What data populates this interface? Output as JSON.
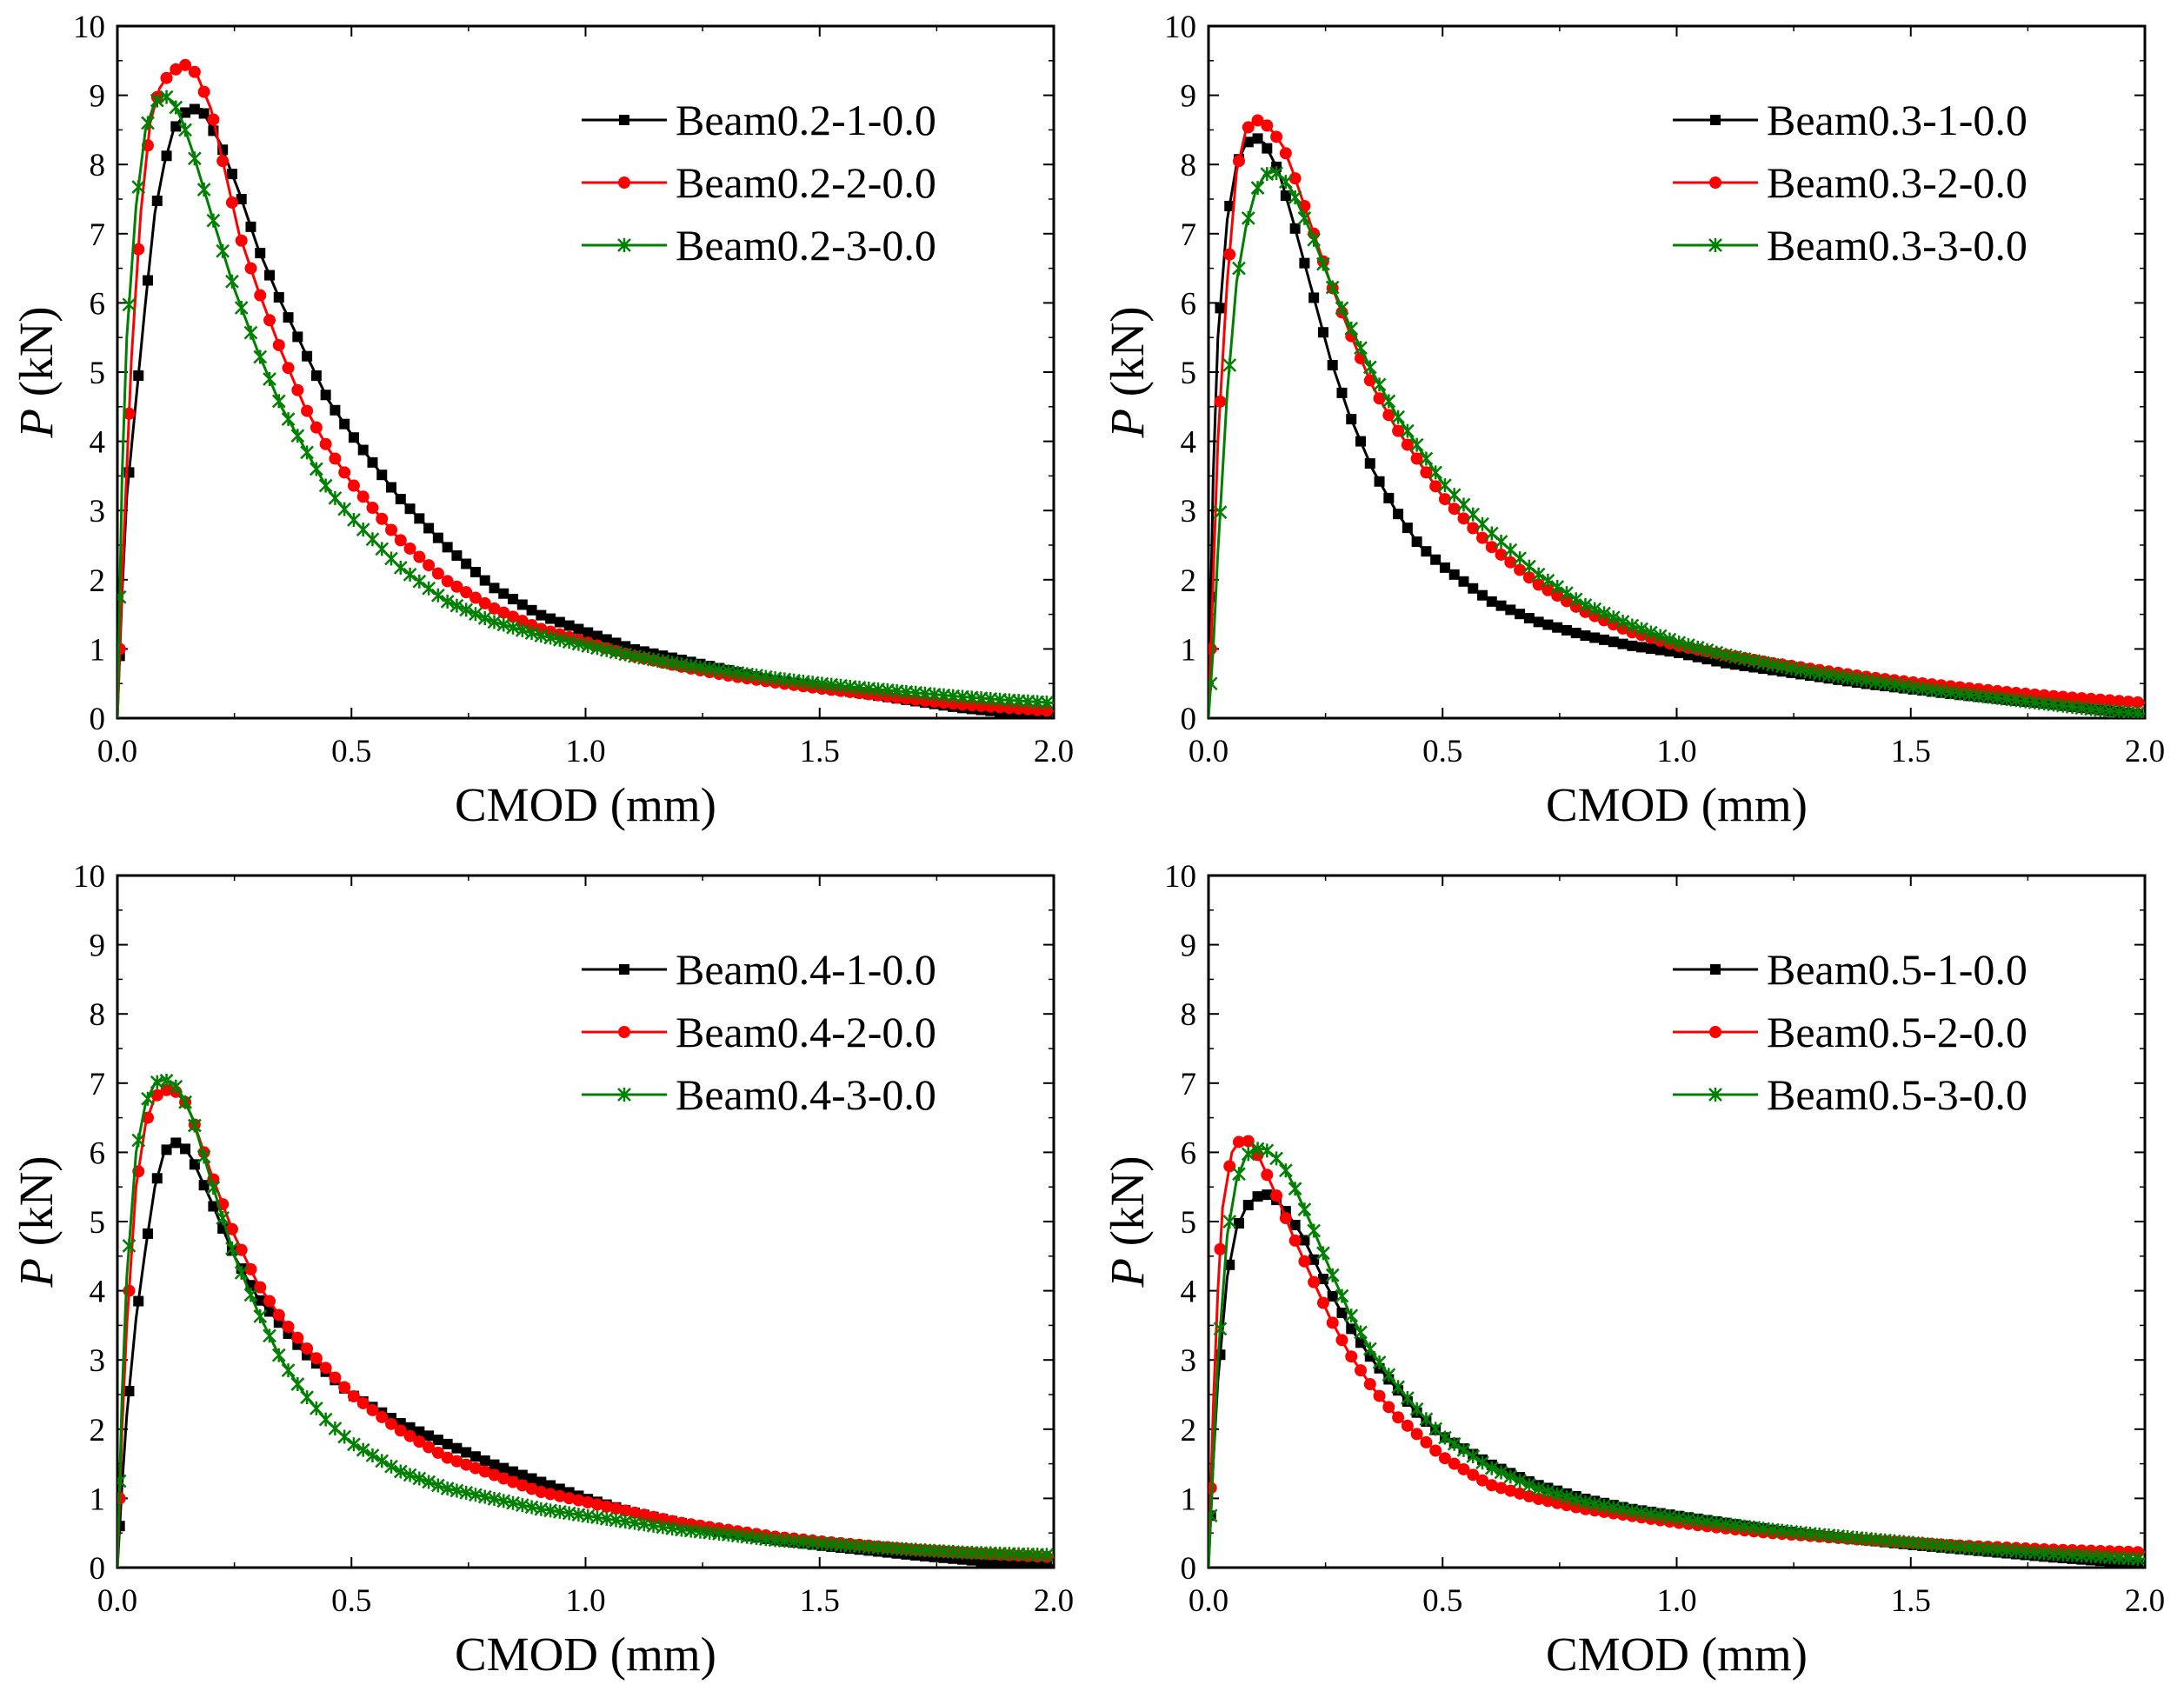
{
  "chart_data": [
    {
      "type": "line",
      "xlabel": "CMOD (mm)",
      "ylabel_var": "P",
      "ylabel_unit": " (kN)",
      "xlim": [
        0.0,
        2.0
      ],
      "ylim": [
        0,
        10
      ],
      "xticks": [
        "0.0",
        "0.5",
        "1.0",
        "1.5",
        "2.0"
      ],
      "yticks": [
        "0",
        "1",
        "2",
        "3",
        "4",
        "5",
        "6",
        "7",
        "8",
        "9",
        "10"
      ],
      "legend_position": "top-right",
      "series": [
        {
          "name": "Beam0.2-1-0.0",
          "color": "#000000",
          "marker": "square",
          "x": [
            0,
            0.01,
            0.02,
            0.04,
            0.06,
            0.08,
            0.1,
            0.12,
            0.15,
            0.18,
            0.22,
            0.26,
            0.3,
            0.35,
            0.4,
            0.45,
            0.5,
            0.6,
            0.7,
            0.8,
            0.9,
            1.0,
            1.1,
            1.2,
            1.3,
            1.4,
            1.5,
            1.6,
            1.7,
            1.8,
            1.9,
            2.0
          ],
          "y": [
            0,
            1.8,
            3.2,
            4.6,
            6.0,
            7.3,
            8.0,
            8.5,
            8.8,
            8.8,
            8.3,
            7.6,
            6.8,
            6.0,
            5.3,
            4.6,
            4.1,
            3.2,
            2.5,
            1.9,
            1.5,
            1.25,
            1.0,
            0.85,
            0.7,
            0.55,
            0.45,
            0.35,
            0.25,
            0.15,
            0.08,
            0.05
          ]
        },
        {
          "name": "Beam0.2-2-0.0",
          "color": "#ff0000",
          "marker": "circle",
          "x": [
            0,
            0.01,
            0.02,
            0.03,
            0.05,
            0.07,
            0.09,
            0.11,
            0.13,
            0.15,
            0.17,
            0.2,
            0.23,
            0.26,
            0.3,
            0.35,
            0.4,
            0.45,
            0.5,
            0.6,
            0.7,
            0.8,
            0.9,
            1.0,
            1.1,
            1.2,
            1.3,
            1.4,
            1.5,
            1.6,
            1.7,
            1.8,
            1.9,
            2.0
          ],
          "y": [
            0,
            2.0,
            3.6,
            5.2,
            7.3,
            8.6,
            9.1,
            9.3,
            9.4,
            9.45,
            9.3,
            8.8,
            7.9,
            7.0,
            6.2,
            5.3,
            4.5,
            3.9,
            3.4,
            2.6,
            2.0,
            1.6,
            1.3,
            1.1,
            0.9,
            0.75,
            0.62,
            0.52,
            0.43,
            0.35,
            0.27,
            0.2,
            0.15,
            0.1
          ]
        },
        {
          "name": "Beam0.2-3-0.0",
          "color": "#008000",
          "marker": "asterisk",
          "x": [
            0,
            0.01,
            0.02,
            0.04,
            0.06,
            0.08,
            0.1,
            0.12,
            0.14,
            0.16,
            0.2,
            0.25,
            0.3,
            0.35,
            0.4,
            0.45,
            0.5,
            0.6,
            0.7,
            0.8,
            0.9,
            1.0,
            1.1,
            1.2,
            1.3,
            1.4,
            1.5,
            1.6,
            1.7,
            1.8,
            1.9,
            2.0
          ],
          "y": [
            0,
            3.5,
            5.5,
            7.4,
            8.5,
            8.9,
            9.0,
            8.9,
            8.6,
            8.2,
            7.3,
            6.2,
            5.3,
            4.5,
            3.9,
            3.3,
            2.9,
            2.2,
            1.7,
            1.4,
            1.2,
            1.05,
            0.9,
            0.78,
            0.68,
            0.58,
            0.5,
            0.43,
            0.37,
            0.31,
            0.26,
            0.22
          ]
        }
      ]
    },
    {
      "type": "line",
      "xlabel": "CMOD (mm)",
      "ylabel_var": "P",
      "ylabel_unit": " (kN)",
      "xlim": [
        0.0,
        2.0
      ],
      "ylim": [
        0,
        10
      ],
      "xticks": [
        "0.0",
        "0.5",
        "1.0",
        "1.5",
        "2.0"
      ],
      "yticks": [
        "0",
        "1",
        "2",
        "3",
        "4",
        "5",
        "6",
        "7",
        "8",
        "9",
        "10"
      ],
      "legend_position": "top-right",
      "series": [
        {
          "name": "Beam0.3-1-0.0",
          "color": "#000000",
          "marker": "square",
          "x": [
            0,
            0.01,
            0.02,
            0.04,
            0.06,
            0.08,
            0.1,
            0.12,
            0.15,
            0.18,
            0.22,
            0.26,
            0.3,
            0.35,
            0.4,
            0.45,
            0.5,
            0.6,
            0.7,
            0.8,
            0.9,
            1.0,
            1.1,
            1.2,
            1.3,
            1.4,
            1.5,
            1.6,
            1.7,
            1.8,
            1.9,
            2.0
          ],
          "y": [
            0,
            3.5,
            5.5,
            7.2,
            8.0,
            8.3,
            8.4,
            8.3,
            7.9,
            7.2,
            6.2,
            5.2,
            4.4,
            3.6,
            3.0,
            2.5,
            2.2,
            1.7,
            1.4,
            1.2,
            1.05,
            0.95,
            0.8,
            0.7,
            0.6,
            0.5,
            0.42,
            0.34,
            0.27,
            0.2,
            0.12,
            0.05
          ]
        },
        {
          "name": "Beam0.3-2-0.0",
          "color": "#ff0000",
          "marker": "circle",
          "x": [
            0,
            0.01,
            0.02,
            0.04,
            0.06,
            0.08,
            0.1,
            0.12,
            0.14,
            0.16,
            0.18,
            0.22,
            0.26,
            0.3,
            0.35,
            0.4,
            0.45,
            0.5,
            0.6,
            0.7,
            0.8,
            0.9,
            1.0,
            1.1,
            1.2,
            1.3,
            1.4,
            1.5,
            1.6,
            1.7,
            1.8,
            1.9,
            2.0
          ],
          "y": [
            0,
            2.0,
            4.0,
            6.3,
            7.9,
            8.5,
            8.65,
            8.6,
            8.45,
            8.25,
            7.9,
            7.1,
            6.3,
            5.6,
            4.8,
            4.2,
            3.7,
            3.2,
            2.5,
            1.95,
            1.55,
            1.25,
            1.05,
            0.92,
            0.8,
            0.7,
            0.6,
            0.52,
            0.45,
            0.38,
            0.32,
            0.27,
            0.22
          ]
        },
        {
          "name": "Beam0.3-3-0.0",
          "color": "#008000",
          "marker": "asterisk",
          "x": [
            0,
            0.01,
            0.02,
            0.04,
            0.06,
            0.08,
            0.1,
            0.12,
            0.14,
            0.16,
            0.18,
            0.22,
            0.26,
            0.3,
            0.35,
            0.4,
            0.45,
            0.5,
            0.6,
            0.7,
            0.8,
            0.9,
            1.0,
            1.1,
            1.2,
            1.3,
            1.4,
            1.5,
            1.6,
            1.7,
            1.8,
            1.9,
            2.0
          ],
          "y": [
            0,
            1.0,
            2.4,
            4.7,
            6.3,
            7.1,
            7.6,
            7.85,
            7.9,
            7.8,
            7.6,
            7.0,
            6.3,
            5.7,
            5.0,
            4.4,
            3.9,
            3.4,
            2.7,
            2.1,
            1.65,
            1.35,
            1.1,
            0.92,
            0.78,
            0.65,
            0.55,
            0.45,
            0.36,
            0.28,
            0.2,
            0.12,
            0.06
          ]
        }
      ]
    },
    {
      "type": "line",
      "xlabel": "CMOD (mm)",
      "ylabel_var": "P",
      "ylabel_unit": " (kN)",
      "xlim": [
        0.0,
        2.0
      ],
      "ylim": [
        0,
        10
      ],
      "xticks": [
        "0.0",
        "0.5",
        "1.0",
        "1.5",
        "2.0"
      ],
      "yticks": [
        "0",
        "1",
        "2",
        "3",
        "4",
        "5",
        "6",
        "7",
        "8",
        "9",
        "10"
      ],
      "legend_position": "top-right",
      "series": [
        {
          "name": "Beam0.4-1-0.0",
          "color": "#000000",
          "marker": "square",
          "x": [
            0,
            0.01,
            0.02,
            0.04,
            0.06,
            0.08,
            0.1,
            0.12,
            0.14,
            0.16,
            0.2,
            0.25,
            0.3,
            0.35,
            0.4,
            0.45,
            0.5,
            0.6,
            0.7,
            0.8,
            0.9,
            1.0,
            1.1,
            1.2,
            1.3,
            1.4,
            1.5,
            1.6,
            1.7,
            1.8,
            1.9,
            2.0
          ],
          "y": [
            0,
            1.2,
            2.2,
            3.6,
            4.6,
            5.5,
            6.0,
            6.15,
            6.1,
            5.9,
            5.3,
            4.5,
            3.9,
            3.5,
            3.1,
            2.8,
            2.5,
            2.1,
            1.8,
            1.5,
            1.25,
            1.0,
            0.8,
            0.65,
            0.5,
            0.4,
            0.32,
            0.25,
            0.18,
            0.12,
            0.06,
            0.03
          ]
        },
        {
          "name": "Beam0.4-2-0.0",
          "color": "#ff0000",
          "marker": "circle",
          "x": [
            0,
            0.01,
            0.02,
            0.04,
            0.06,
            0.08,
            0.1,
            0.12,
            0.14,
            0.16,
            0.2,
            0.25,
            0.3,
            0.35,
            0.4,
            0.45,
            0.5,
            0.6,
            0.7,
            0.8,
            0.9,
            1.0,
            1.1,
            1.2,
            1.3,
            1.4,
            1.5,
            1.6,
            1.7,
            1.8,
            1.9,
            2.0
          ],
          "y": [
            0,
            2.0,
            3.5,
            5.5,
            6.4,
            6.8,
            6.9,
            6.9,
            6.8,
            6.5,
            5.7,
            4.8,
            4.1,
            3.6,
            3.2,
            2.85,
            2.5,
            2.0,
            1.6,
            1.35,
            1.1,
            0.95,
            0.8,
            0.65,
            0.55,
            0.45,
            0.38,
            0.32,
            0.26,
            0.22,
            0.18,
            0.15
          ]
        },
        {
          "name": "Beam0.4-3-0.0",
          "color": "#008000",
          "marker": "asterisk",
          "x": [
            0,
            0.01,
            0.02,
            0.04,
            0.06,
            0.08,
            0.1,
            0.12,
            0.14,
            0.16,
            0.2,
            0.25,
            0.3,
            0.35,
            0.4,
            0.45,
            0.5,
            0.6,
            0.7,
            0.8,
            0.9,
            1.0,
            1.1,
            1.2,
            1.3,
            1.4,
            1.5,
            1.6,
            1.7,
            1.8,
            1.9,
            2.0
          ],
          "y": [
            0,
            2.5,
            4.2,
            6.0,
            6.7,
            7.0,
            7.05,
            7.0,
            6.8,
            6.5,
            5.6,
            4.5,
            3.7,
            3.0,
            2.5,
            2.1,
            1.8,
            1.4,
            1.15,
            1.0,
            0.85,
            0.75,
            0.65,
            0.55,
            0.48,
            0.4,
            0.35,
            0.3,
            0.26,
            0.22,
            0.2,
            0.18
          ]
        }
      ]
    },
    {
      "type": "line",
      "xlabel": "CMOD (mm)",
      "ylabel_var": "P",
      "ylabel_unit": " (kN)",
      "xlim": [
        0.0,
        2.0
      ],
      "ylim": [
        0,
        10
      ],
      "xticks": [
        "0.0",
        "0.5",
        "1.0",
        "1.5",
        "2.0"
      ],
      "yticks": [
        "0",
        "1",
        "2",
        "3",
        "4",
        "5",
        "6",
        "7",
        "8",
        "9",
        "10"
      ],
      "legend_position": "top-right",
      "series": [
        {
          "name": "Beam0.5-1-0.0",
          "color": "#000000",
          "marker": "square",
          "x": [
            0,
            0.01,
            0.02,
            0.04,
            0.06,
            0.08,
            0.1,
            0.12,
            0.14,
            0.16,
            0.2,
            0.25,
            0.3,
            0.35,
            0.4,
            0.45,
            0.5,
            0.6,
            0.7,
            0.8,
            0.9,
            1.0,
            1.1,
            1.2,
            1.3,
            1.4,
            1.5,
            1.6,
            1.7,
            1.8,
            1.9,
            2.0
          ],
          "y": [
            0,
            1.5,
            2.7,
            4.2,
            4.9,
            5.2,
            5.35,
            5.4,
            5.35,
            5.2,
            4.8,
            4.1,
            3.5,
            3.0,
            2.6,
            2.2,
            1.9,
            1.5,
            1.2,
            1.0,
            0.85,
            0.75,
            0.65,
            0.55,
            0.47,
            0.4,
            0.33,
            0.27,
            0.21,
            0.15,
            0.1,
            0.06
          ]
        },
        {
          "name": "Beam0.5-2-0.0",
          "color": "#ff0000",
          "marker": "circle",
          "x": [
            0,
            0.01,
            0.02,
            0.03,
            0.05,
            0.07,
            0.09,
            0.11,
            0.13,
            0.15,
            0.18,
            0.22,
            0.26,
            0.3,
            0.35,
            0.4,
            0.45,
            0.5,
            0.6,
            0.7,
            0.8,
            0.9,
            1.0,
            1.1,
            1.2,
            1.3,
            1.4,
            1.5,
            1.6,
            1.7,
            1.8,
            1.9,
            2.0
          ],
          "y": [
            0,
            2.3,
            4.0,
            5.2,
            6.0,
            6.2,
            6.15,
            5.9,
            5.6,
            5.3,
            4.8,
            4.2,
            3.6,
            3.1,
            2.6,
            2.2,
            1.9,
            1.6,
            1.2,
            1.0,
            0.85,
            0.75,
            0.65,
            0.57,
            0.5,
            0.45,
            0.4,
            0.36,
            0.32,
            0.29,
            0.26,
            0.24,
            0.22
          ]
        },
        {
          "name": "Beam0.5-3-0.0",
          "color": "#008000",
          "marker": "asterisk",
          "x": [
            0,
            0.01,
            0.02,
            0.04,
            0.06,
            0.08,
            0.1,
            0.12,
            0.14,
            0.16,
            0.18,
            0.22,
            0.26,
            0.3,
            0.35,
            0.4,
            0.45,
            0.5,
            0.6,
            0.7,
            0.8,
            0.9,
            1.0,
            1.1,
            1.2,
            1.3,
            1.4,
            1.5,
            1.6,
            1.7,
            1.8,
            1.9,
            2.0
          ],
          "y": [
            0,
            1.5,
            3.0,
            4.8,
            5.6,
            5.95,
            6.05,
            6.05,
            5.95,
            5.8,
            5.55,
            4.95,
            4.3,
            3.7,
            3.1,
            2.65,
            2.25,
            1.9,
            1.45,
            1.15,
            0.95,
            0.82,
            0.72,
            0.63,
            0.55,
            0.48,
            0.42,
            0.36,
            0.3,
            0.25,
            0.2,
            0.16,
            0.12
          ]
        }
      ]
    }
  ]
}
